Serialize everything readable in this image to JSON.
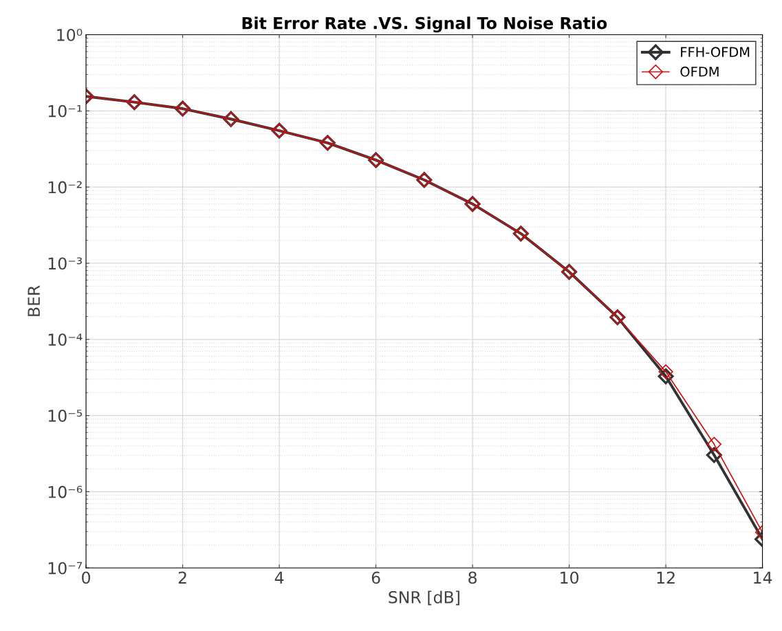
{
  "chart_data": {
    "type": "line",
    "title": "Bit Error Rate .VS. Signal To Noise Ratio",
    "xlabel": "SNR [dB]",
    "ylabel": "BER",
    "x": [
      0,
      1,
      2,
      3,
      4,
      5,
      6,
      7,
      8,
      9,
      10,
      11,
      12,
      13,
      14
    ],
    "series": [
      {
        "name": "FFH-OFDM",
        "color": "#333333",
        "values": [
          0.155,
          0.13,
          0.107,
          0.078,
          0.055,
          0.038,
          0.0226,
          0.0124,
          0.006,
          0.00245,
          0.00077,
          0.000195,
          3.27e-05,
          3.03e-06,
          2.38e-07
        ]
      },
      {
        "name": "OFDM",
        "color": "#d01010",
        "values": [
          0.155,
          0.13,
          0.107,
          0.078,
          0.055,
          0.038,
          0.0226,
          0.0124,
          0.006,
          0.00245,
          0.00077,
          0.000195,
          3.76e-05,
          4.2e-06,
          2.93e-07
        ]
      }
    ],
    "log": "y",
    "xlim": [
      0,
      14
    ],
    "xticks": [
      0,
      2,
      4,
      6,
      8,
      10,
      12,
      14
    ],
    "ylim": [
      1e-07,
      1
    ],
    "yticks": [
      {
        "value": 1e-07,
        "label": "10⁻⁷"
      },
      {
        "value": 1e-06,
        "label": "10⁻⁶"
      },
      {
        "value": 1e-05,
        "label": "10⁻⁵"
      },
      {
        "value": 0.0001,
        "label": "10⁻⁴"
      },
      {
        "value": 0.001,
        "label": "10⁻³"
      },
      {
        "value": 0.01,
        "label": "10⁻²"
      },
      {
        "value": 0.1,
        "label": "10⁻¹"
      },
      {
        "value": 1,
        "label": "10⁰"
      }
    ],
    "grid": true,
    "legend": "top right",
    "marker": "diamond",
    "line_style": "solid"
  }
}
